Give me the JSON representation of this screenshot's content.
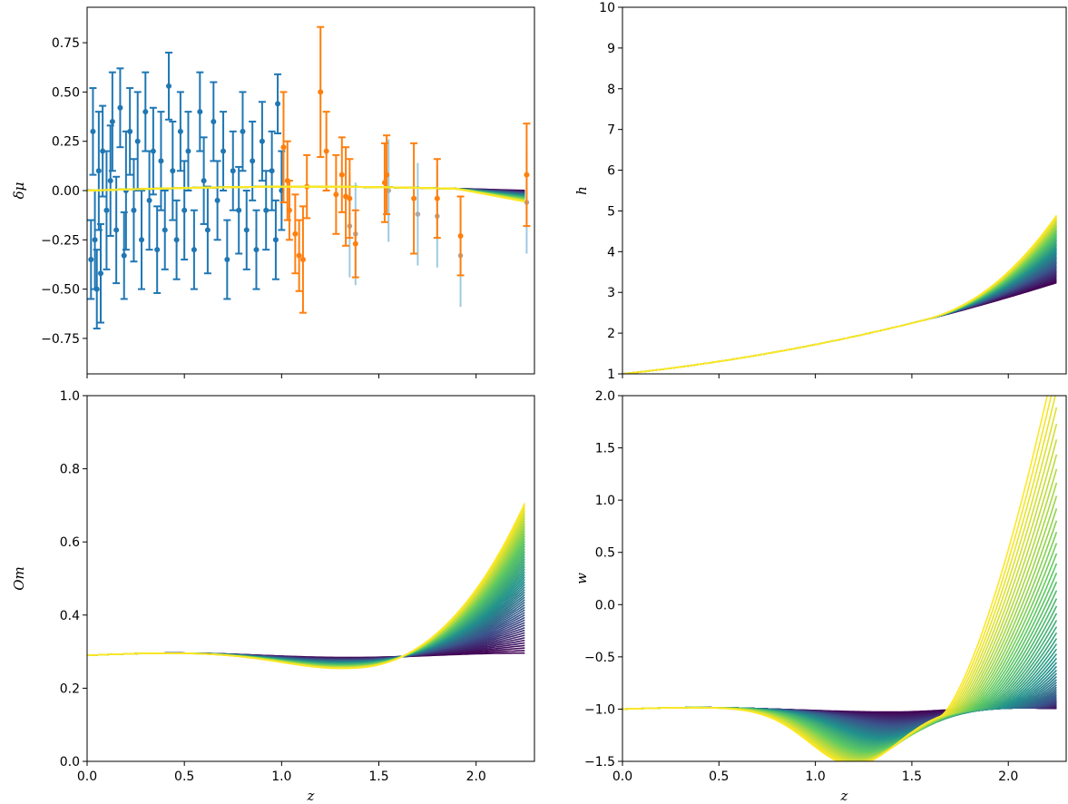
{
  "chart_data": [
    {
      "id": "dmu",
      "type": "scatter",
      "xlabel": "",
      "ylabel": "δμ",
      "xlim": [
        0.0,
        2.3
      ],
      "ylim": [
        -0.93,
        0.93
      ],
      "xticks": [
        0.0,
        0.5,
        1.0,
        1.5,
        2.0
      ],
      "xtick_labels": [
        "",
        "",
        "",
        "",
        ""
      ],
      "yticks": [
        -0.75,
        -0.5,
        -0.25,
        0.0,
        0.25,
        0.5,
        0.75
      ],
      "ytick_labels": [
        "−0.75",
        "−0.50",
        "−0.25",
        "0.00",
        "0.25",
        "0.50",
        "0.75"
      ],
      "grid": false,
      "colors": {
        "sn": "#1f77b4",
        "hz": "#ff7f0e",
        "hz_shadow": "#9ecae1",
        "gray": "#aaaaaa"
      },
      "series_sn": [
        [
          0.02,
          -0.35,
          0.2
        ],
        [
          0.03,
          0.3,
          0.22
        ],
        [
          0.04,
          -0.25,
          0.25
        ],
        [
          0.05,
          -0.5,
          0.2
        ],
        [
          0.06,
          0.1,
          0.3
        ],
        [
          0.07,
          -0.42,
          0.25
        ],
        [
          0.08,
          0.2,
          0.23
        ],
        [
          0.1,
          -0.1,
          0.3
        ],
        [
          0.12,
          0.05,
          0.28
        ],
        [
          0.13,
          0.35,
          0.25
        ],
        [
          0.15,
          -0.2,
          0.27
        ],
        [
          0.17,
          0.42,
          0.2
        ],
        [
          0.19,
          -0.33,
          0.22
        ],
        [
          0.2,
          0.0,
          0.3
        ],
        [
          0.22,
          0.3,
          0.22
        ],
        [
          0.24,
          -0.1,
          0.26
        ],
        [
          0.26,
          0.25,
          0.25
        ],
        [
          0.28,
          -0.25,
          0.25
        ],
        [
          0.3,
          0.4,
          0.2
        ],
        [
          0.32,
          -0.05,
          0.25
        ],
        [
          0.34,
          0.2,
          0.22
        ],
        [
          0.36,
          -0.3,
          0.22
        ],
        [
          0.38,
          0.15,
          0.25
        ],
        [
          0.4,
          -0.2,
          0.2
        ],
        [
          0.42,
          0.53,
          0.17
        ],
        [
          0.44,
          0.1,
          0.25
        ],
        [
          0.46,
          -0.25,
          0.2
        ],
        [
          0.48,
          0.3,
          0.2
        ],
        [
          0.5,
          -0.1,
          0.25
        ],
        [
          0.52,
          0.2,
          0.2
        ],
        [
          0.55,
          -0.3,
          0.2
        ],
        [
          0.58,
          0.4,
          0.2
        ],
        [
          0.6,
          0.05,
          0.22
        ],
        [
          0.62,
          -0.2,
          0.22
        ],
        [
          0.65,
          0.35,
          0.2
        ],
        [
          0.67,
          -0.05,
          0.2
        ],
        [
          0.7,
          0.2,
          0.2
        ],
        [
          0.72,
          -0.35,
          0.2
        ],
        [
          0.75,
          0.1,
          0.2
        ],
        [
          0.78,
          -0.1,
          0.22
        ],
        [
          0.8,
          0.3,
          0.2
        ],
        [
          0.82,
          -0.2,
          0.2
        ],
        [
          0.85,
          0.15,
          0.2
        ],
        [
          0.87,
          -0.3,
          0.2
        ],
        [
          0.9,
          0.25,
          0.2
        ],
        [
          0.92,
          -0.1,
          0.2
        ],
        [
          0.95,
          0.1,
          0.2
        ],
        [
          0.97,
          -0.25,
          0.2
        ],
        [
          0.98,
          0.44,
          0.15
        ],
        [
          1.0,
          0.0,
          0.2
        ]
      ],
      "series_hz": [
        [
          1.01,
          0.22,
          0.28
        ],
        [
          1.03,
          0.05,
          0.2
        ],
        [
          1.04,
          -0.1,
          0.15
        ],
        [
          1.07,
          -0.22,
          0.2
        ],
        [
          1.09,
          -0.33,
          0.18
        ],
        [
          1.11,
          -0.35,
          0.27
        ],
        [
          1.13,
          0.02,
          0.16
        ],
        [
          1.2,
          0.5,
          0.33
        ],
        [
          1.23,
          0.2,
          0.2
        ],
        [
          1.28,
          -0.02,
          0.2
        ],
        [
          1.31,
          0.08,
          0.19
        ],
        [
          1.33,
          -0.03,
          0.25
        ],
        [
          1.35,
          -0.04,
          0.2
        ],
        [
          1.38,
          -0.27,
          0.17
        ],
        [
          1.53,
          0.04,
          0.2
        ],
        [
          1.54,
          0.08,
          0.2
        ],
        [
          1.68,
          -0.04,
          0.28
        ],
        [
          1.8,
          -0.04,
          0.2
        ],
        [
          1.92,
          -0.23,
          0.2
        ],
        [
          2.26,
          0.08,
          0.26
        ]
      ],
      "series_gray": [
        [
          1.35,
          -0.18
        ],
        [
          1.38,
          -0.22
        ],
        [
          1.55,
          0.0
        ],
        [
          1.7,
          -0.12
        ],
        [
          1.8,
          -0.13
        ],
        [
          1.92,
          -0.33
        ],
        [
          2.26,
          -0.06
        ]
      ]
    },
    {
      "id": "h",
      "type": "line",
      "xlabel": "",
      "ylabel": "h",
      "xlim": [
        0.0,
        2.3
      ],
      "ylim": [
        1,
        10
      ],
      "xticks": [
        0.0,
        0.5,
        1.0,
        1.5,
        2.0
      ],
      "xtick_labels": [
        "",
        "",
        "",
        "",
        ""
      ],
      "yticks": [
        1,
        2,
        3,
        4,
        5,
        6,
        7,
        8,
        9,
        10
      ],
      "ytick_labels": [
        "1",
        "2",
        "3",
        "4",
        "5",
        "6",
        "7",
        "8",
        "9",
        "10"
      ],
      "grid": false,
      "colormap": "viridis",
      "z_max": 2.25,
      "end_range": [
        3.25,
        4.9
      ]
    },
    {
      "id": "om",
      "type": "line",
      "xlabel": "z",
      "ylabel": "Om",
      "xlim": [
        0.0,
        2.3
      ],
      "ylim": [
        0.0,
        1.0
      ],
      "xticks": [
        0.0,
        0.5,
        1.0,
        1.5,
        2.0
      ],
      "xtick_labels": [
        "0.0",
        "0.5",
        "1.0",
        "1.5",
        "2.0"
      ],
      "yticks": [
        0.0,
        0.2,
        0.4,
        0.6,
        0.8,
        1.0
      ],
      "ytick_labels": [
        "0.0",
        "0.2",
        "0.4",
        "0.6",
        "0.8",
        "1.0"
      ],
      "grid": false,
      "colormap": "viridis",
      "z_max": 2.25,
      "end_range": [
        0.285,
        0.695
      ]
    },
    {
      "id": "w",
      "type": "line",
      "xlabel": "z",
      "ylabel": "w",
      "xlim": [
        0.0,
        2.3
      ],
      "ylim": [
        -1.5,
        2.0
      ],
      "xticks": [
        0.0,
        0.5,
        1.0,
        1.5,
        2.0
      ],
      "xtick_labels": [
        "0.0",
        "0.5",
        "1.0",
        "1.5",
        "2.0"
      ],
      "yticks": [
        -1.5,
        -1.0,
        -0.5,
        0.0,
        0.5,
        1.0,
        1.5,
        2.0
      ],
      "ytick_labels": [
        "−1.5",
        "−1.0",
        "−0.5",
        "0.0",
        "0.5",
        "1.0",
        "1.5",
        "2.0"
      ],
      "grid": false,
      "colormap": "viridis",
      "z_max": 2.25
    }
  ]
}
